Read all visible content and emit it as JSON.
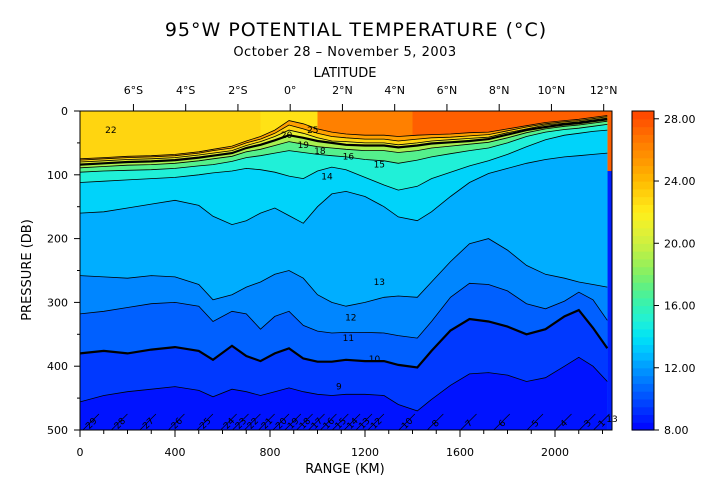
{
  "chart_data": {
    "type": "heatmap",
    "title": "95°W POTENTIAL TEMPERATURE (°C)",
    "subtitle": "October 28 – November 5, 2003",
    "xlabel": "RANGE (KM)",
    "ylabel": "PRESSURE (DB)",
    "top_axis_label": "LATITUDE",
    "xlim": [
      0,
      2240
    ],
    "ylim": [
      0,
      500
    ],
    "y_inverted": true,
    "x_ticks": [
      0,
      400,
      800,
      1200,
      1600,
      2000
    ],
    "x_tick_labels": [
      "0",
      "400",
      "800",
      "1200",
      "1600",
      "2000"
    ],
    "y_ticks": [
      0,
      100,
      200,
      300,
      400,
      500
    ],
    "y_tick_labels": [
      "0",
      "100",
      "200",
      "300",
      "400",
      "500"
    ],
    "lat_ticks": [
      {
        "label": "6°S",
        "x": 225
      },
      {
        "label": "4°S",
        "x": 445
      },
      {
        "label": "2°S",
        "x": 665
      },
      {
        "label": "0°",
        "x": 885
      },
      {
        "label": "2°N",
        "x": 1105
      },
      {
        "label": "4°N",
        "x": 1325
      },
      {
        "label": "6°N",
        "x": 1545
      },
      {
        "label": "8°N",
        "x": 1765
      },
      {
        "label": "10°N",
        "x": 1985
      },
      {
        "label": "12°N",
        "x": 2205
      }
    ],
    "colorbar": {
      "min": 8,
      "max": 28.5,
      "ticks": [
        8,
        12,
        16,
        20,
        24,
        28
      ],
      "tick_labels": [
        "8.00",
        "12.00",
        "16.00",
        "20.00",
        "24.00",
        "28.00"
      ]
    },
    "x_profile": [
      0,
      100,
      200,
      300,
      400,
      500,
      560,
      640,
      700,
      760,
      820,
      880,
      940,
      1000,
      1060,
      1120,
      1200,
      1280,
      1340,
      1420,
      1480,
      1560,
      1640,
      1720,
      1800,
      1880,
      1960,
      2040,
      2100,
      2160,
      2220
    ],
    "isotherm_depths": [
      {
        "t": 26,
        "depth": [
          75,
          73,
          71,
          70,
          68,
          64,
          60,
          55,
          47,
          40,
          30,
          15,
          20,
          28,
          33,
          36,
          38,
          38,
          40,
          38,
          37,
          36,
          34,
          33,
          28,
          23,
          18,
          15,
          13,
          10,
          7
        ]
      },
      {
        "t": 24,
        "depth": [
          77,
          75,
          73,
          72,
          70,
          66,
          62,
          58,
          50,
          44,
          35,
          22,
          28,
          35,
          40,
          42,
          44,
          44,
          47,
          44,
          42,
          41,
          39,
          37,
          31,
          25,
          20,
          17,
          15,
          12,
          9
        ]
      },
      {
        "t": 22,
        "depth": [
          80,
          78,
          76,
          75,
          73,
          69,
          66,
          62,
          54,
          48,
          40,
          30,
          35,
          42,
          47,
          48,
          50,
          50,
          53,
          50,
          47,
          45,
          43,
          41,
          34,
          28,
          22,
          19,
          17,
          14,
          11
        ]
      },
      {
        "t": 20,
        "depth": [
          84,
          82,
          80,
          79,
          77,
          73,
          70,
          66,
          58,
          53,
          46,
          38,
          42,
          47,
          50,
          53,
          54,
          54,
          57,
          54,
          51,
          49,
          47,
          44,
          37,
          30,
          25,
          21,
          19,
          16,
          13
        ]
      },
      {
        "t": 18,
        "depth": [
          89,
          87,
          85,
          84,
          82,
          78,
          75,
          71,
          64,
          60,
          54,
          48,
          52,
          56,
          58,
          60,
          62,
          62,
          65,
          62,
          58,
          55,
          52,
          49,
          42,
          34,
          28,
          24,
          22,
          19,
          16
        ]
      },
      {
        "t": 16,
        "depth": [
          96,
          94,
          93,
          92,
          90,
          86,
          84,
          79,
          73,
          70,
          66,
          62,
          65,
          68,
          70,
          72,
          76,
          78,
          82,
          77,
          72,
          67,
          62,
          58,
          50,
          40,
          33,
          29,
          27,
          24,
          21
        ]
      },
      {
        "t": 14,
        "depth": [
          112,
          110,
          108,
          106,
          104,
          100,
          97,
          94,
          90,
          92,
          96,
          102,
          106,
          94,
          88,
          92,
          104,
          116,
          124,
          118,
          106,
          96,
          86,
          78,
          68,
          56,
          45,
          38,
          35,
          32,
          30
        ]
      },
      {
        "t": 13,
        "depth": [
          160,
          158,
          152,
          146,
          140,
          148,
          165,
          178,
          172,
          160,
          152,
          164,
          176,
          150,
          130,
          126,
          134,
          150,
          166,
          172,
          158,
          134,
          112,
          98,
          90,
          82,
          76,
          72,
          70,
          68,
          66
        ]
      },
      {
        "t": 12,
        "depth": [
          258,
          260,
          262,
          258,
          260,
          272,
          296,
          288,
          276,
          268,
          256,
          250,
          262,
          288,
          300,
          306,
          300,
          292,
          290,
          292,
          268,
          236,
          208,
          200,
          218,
          242,
          256,
          262,
          268,
          272,
          276
        ]
      },
      {
        "t": 11,
        "depth": [
          318,
          314,
          308,
          302,
          300,
          306,
          330,
          314,
          318,
          342,
          322,
          314,
          336,
          345,
          348,
          347,
          347,
          348,
          352,
          356,
          330,
          292,
          270,
          272,
          282,
          302,
          310,
          298,
          284,
          296,
          328
        ]
      },
      {
        "t": 10,
        "depth": [
          380,
          376,
          380,
          374,
          370,
          376,
          390,
          368,
          384,
          392,
          380,
          372,
          388,
          393,
          393,
          390,
          392,
          392,
          398,
          402,
          376,
          344,
          326,
          330,
          338,
          350,
          342,
          322,
          312,
          340,
          372
        ]
      },
      {
        "t": 9,
        "depth": [
          456,
          446,
          440,
          436,
          432,
          438,
          448,
          436,
          440,
          446,
          440,
          434,
          440,
          444,
          446,
          444,
          444,
          446,
          460,
          470,
          452,
          430,
          412,
          410,
          414,
          424,
          418,
          400,
          386,
          400,
          424
        ]
      }
    ],
    "contour_labels": [
      {
        "text": "22",
        "x": 130,
        "p": 30
      },
      {
        "text": "20",
        "x": 870,
        "p": 38
      },
      {
        "text": "25",
        "x": 980,
        "p": 30
      },
      {
        "text": "19",
        "x": 940,
        "p": 53
      },
      {
        "text": "18",
        "x": 1010,
        "p": 63
      },
      {
        "text": "16",
        "x": 1130,
        "p": 71
      },
      {
        "text": "15",
        "x": 1260,
        "p": 84
      },
      {
        "text": "14",
        "x": 1040,
        "p": 103
      },
      {
        "text": "13",
        "x": 1260,
        "p": 268
      },
      {
        "text": "12",
        "x": 1140,
        "p": 324
      },
      {
        "text": "11",
        "x": 1130,
        "p": 356
      },
      {
        "text": "10",
        "x": 1240,
        "p": 389
      },
      {
        "text": "9",
        "x": 1090,
        "p": 432
      },
      {
        "text": "13",
        "x": 2240,
        "p": 483
      }
    ],
    "ctd_stations": [
      {
        "text": "29",
        "x": 50
      },
      {
        "text": "28",
        "x": 170
      },
      {
        "text": "27",
        "x": 290
      },
      {
        "text": "26",
        "x": 410
      },
      {
        "text": "25",
        "x": 530
      },
      {
        "text": "24",
        "x": 630
      },
      {
        "text": "23",
        "x": 680
      },
      {
        "text": "22",
        "x": 730
      },
      {
        "text": "21",
        "x": 790
      },
      {
        "text": "20",
        "x": 850
      },
      {
        "text": "19",
        "x": 900
      },
      {
        "text": "18",
        "x": 950
      },
      {
        "text": "17",
        "x": 1000
      },
      {
        "text": "16",
        "x": 1050
      },
      {
        "text": "15",
        "x": 1100
      },
      {
        "text": "14",
        "x": 1150
      },
      {
        "text": "13",
        "x": 1200
      },
      {
        "text": "12",
        "x": 1250
      },
      {
        "text": "10",
        "x": 1380
      },
      {
        "text": "8",
        "x": 1500
      },
      {
        "text": "7",
        "x": 1640
      },
      {
        "text": "6",
        "x": 1780
      },
      {
        "text": "5",
        "x": 1920
      },
      {
        "text": "4",
        "x": 2040
      },
      {
        "text": "3",
        "x": 2140
      },
      {
        "text": "1",
        "x": 2200
      }
    ]
  }
}
